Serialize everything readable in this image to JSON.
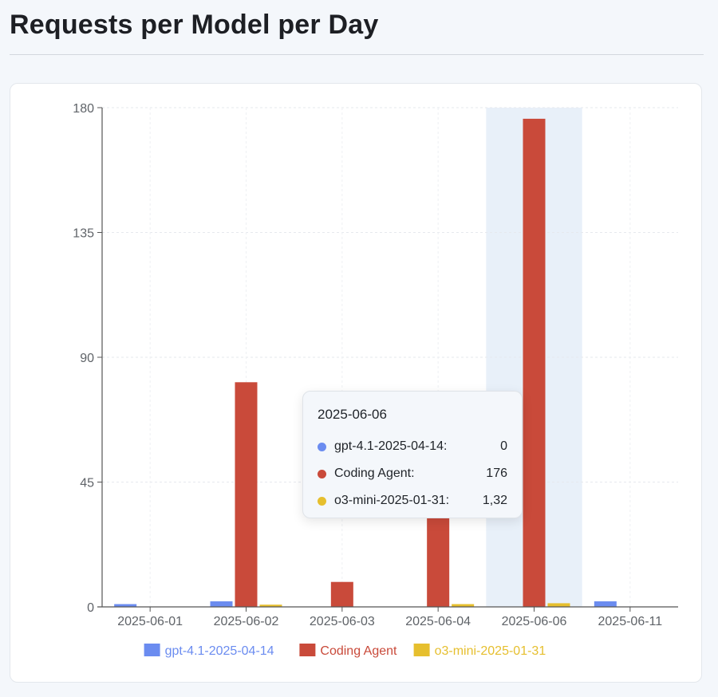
{
  "page": {
    "title": "Requests per Model per Day"
  },
  "chart_data": {
    "type": "bar",
    "categories": [
      "2025-06-01",
      "2025-06-02",
      "2025-06-03",
      "2025-06-04",
      "2025-06-06",
      "2025-06-11"
    ],
    "series": [
      {
        "name": "gpt-4.1-2025-04-14",
        "color": "#6b8cf0",
        "values": [
          1,
          2,
          0,
          0,
          0,
          2
        ]
      },
      {
        "name": "Coding Agent",
        "color": "#c94a3a",
        "values": [
          0,
          81,
          9,
          34,
          176,
          0
        ]
      },
      {
        "name": "o3-mini-2025-01-31",
        "color": "#e6bf2e",
        "values": [
          0,
          0.8,
          0,
          1,
          1.32,
          0
        ]
      }
    ],
    "yticks": [
      "0",
      "45",
      "90",
      "135",
      "180"
    ],
    "ylim": [
      0,
      180
    ],
    "highlighted_category": "2025-06-06",
    "highlight_color": "#e8f0f9",
    "grid": true,
    "legend_position": "bottom"
  },
  "tooltip": {
    "title": "2025-06-06",
    "rows": [
      {
        "name": "gpt-4.1-2025-04-14:",
        "value": "0",
        "color": "#6b8cf0"
      },
      {
        "name": "Coding Agent:",
        "value": "176",
        "color": "#c94a3a"
      },
      {
        "name": "o3-mini-2025-01-31:",
        "value": "1,32",
        "color": "#e6bf2e"
      }
    ]
  }
}
